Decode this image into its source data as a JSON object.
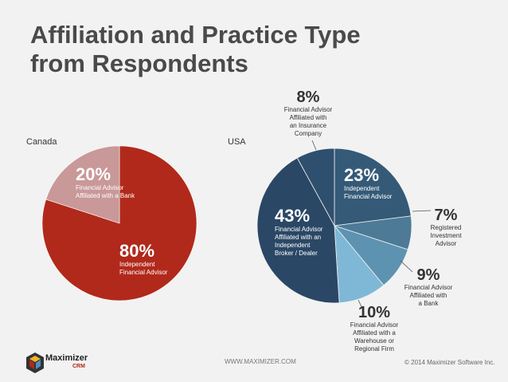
{
  "title_line1": "Affiliation and Practice Type",
  "title_line2": "from Respondents",
  "footer": {
    "url": "WWW.MAXIMIZER.COM",
    "copyright": "© 2014 Maximizer Software Inc.",
    "logo_text": "Maximizer",
    "logo_sub": "CRM"
  },
  "colors": {
    "accent": "#b1291b"
  },
  "chart_data": [
    {
      "type": "pie",
      "title": "Canada",
      "series": [
        {
          "pct": "80%",
          "value": 80,
          "label": [
            "Independent",
            "Financial Advisor"
          ],
          "color": "#b1291b"
        },
        {
          "pct": "20%",
          "value": 20,
          "label": [
            "Financial Advisor",
            "Affiliated with a Bank"
          ],
          "color": "#c99898"
        }
      ]
    },
    {
      "type": "pie",
      "title": "USA",
      "series": [
        {
          "pct": "23%",
          "value": 23,
          "label": [
            "Independent",
            "Financial Advisor"
          ],
          "color": "#345a78"
        },
        {
          "pct": "7%",
          "value": 7,
          "label": [
            "Registered",
            "Investment",
            "Advisor"
          ],
          "color": "#4d7a96"
        },
        {
          "pct": "9%",
          "value": 9,
          "label": [
            "Financial Advisor",
            "Affiliated with",
            "a Bank"
          ],
          "color": "#5d93b1"
        },
        {
          "pct": "10%",
          "value": 10,
          "label": [
            "Financial Advisor",
            "Affiliated with a",
            "Warehouse or",
            "Regional Firm"
          ],
          "color": "#7fb8d6"
        },
        {
          "pct": "43%",
          "value": 43,
          "label": [
            "Financial Advisor",
            "Affiliated with an",
            "Independent",
            "Broker / Dealer"
          ],
          "color": "#2a4766"
        },
        {
          "pct": "8%",
          "value": 8,
          "label": [
            "Financial Advisor",
            "Affiliated with",
            "an Insurance",
            "Company"
          ],
          "color": "#2f4f6e"
        }
      ]
    }
  ]
}
